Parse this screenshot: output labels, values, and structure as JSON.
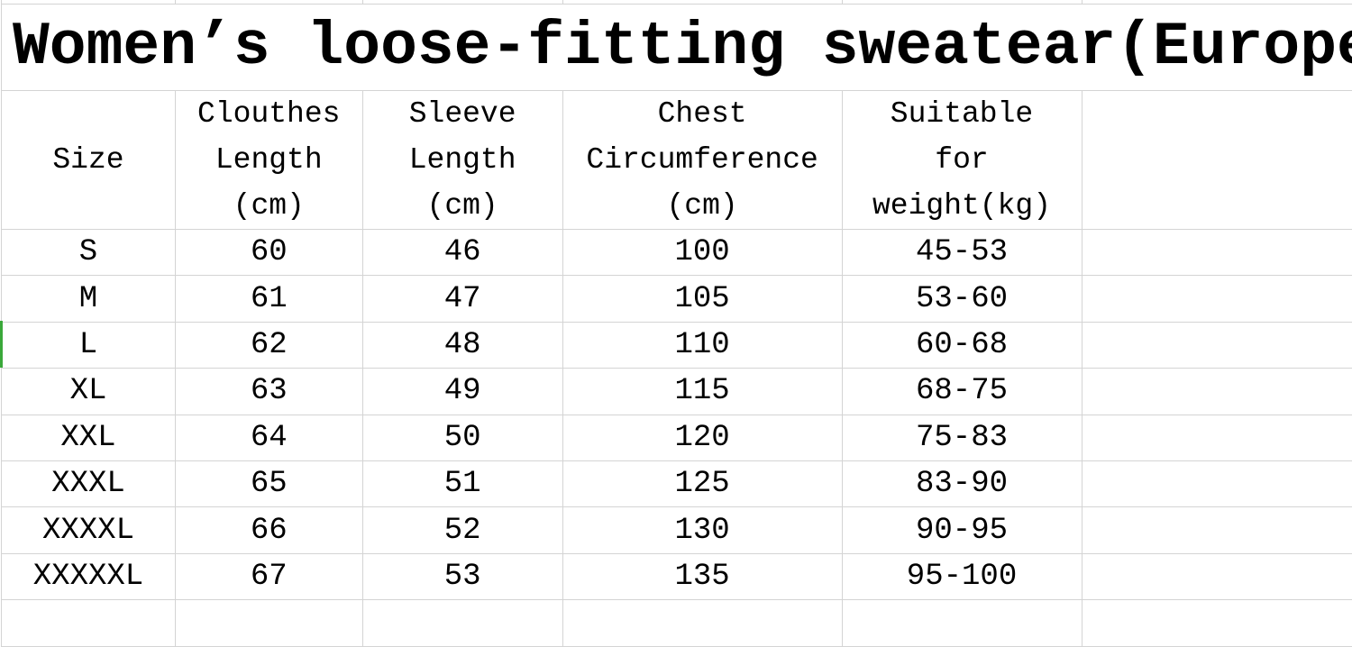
{
  "title": "Women’s loose-fitting sweatear(Europe)",
  "headers": [
    [
      "Size"
    ],
    [
      "Clouthes",
      "Length",
      "(cm)"
    ],
    [
      "Sleeve",
      "Length",
      "(cm)"
    ],
    [
      "Chest",
      "Circumference",
      "(cm)"
    ],
    [
      "Suitable",
      "for",
      "weight(kg)"
    ]
  ],
  "rows": [
    [
      "S",
      "60",
      "46",
      "100",
      "45-53"
    ],
    [
      "M",
      "61",
      "47",
      "105",
      "53-60"
    ],
    [
      "L",
      "62",
      "48",
      "110",
      "60-68"
    ],
    [
      "XL",
      "63",
      "49",
      "115",
      "68-75"
    ],
    [
      "XXL",
      "64",
      "50",
      "120",
      "75-83"
    ],
    [
      "XXXL",
      "65",
      "51",
      "125",
      "83-90"
    ],
    [
      "XXXXL",
      "66",
      "52",
      "130",
      "90-95"
    ],
    [
      "XXXXXL",
      "67",
      "53",
      "135",
      "95-100"
    ]
  ],
  "colors": {
    "gridline": "#d4d4d4",
    "selected_row_marker": "#3aa83a"
  }
}
